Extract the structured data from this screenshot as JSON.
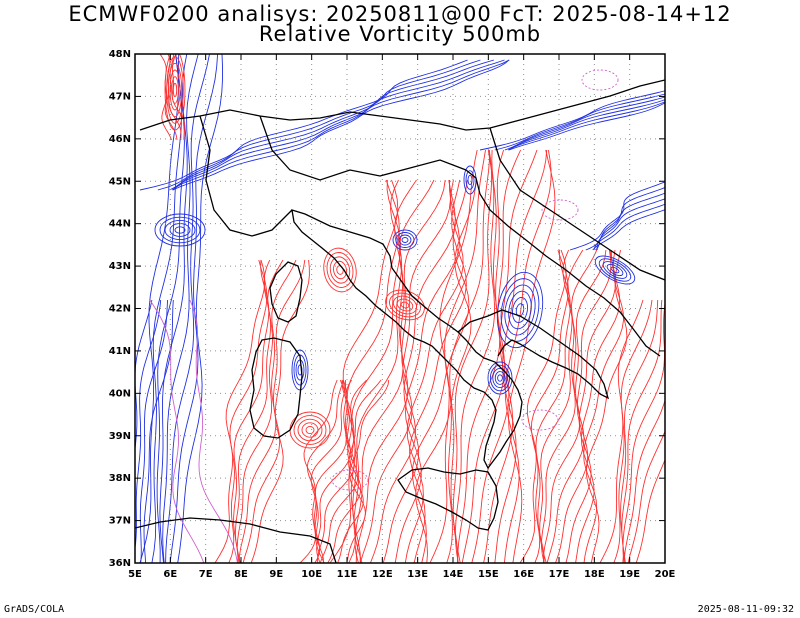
{
  "title": {
    "line1": "ECMWF0200 analisys: 20250811@00 FcT: 2025-08-14+12",
    "line2": "Relative Vorticity 500mb"
  },
  "axes": {
    "lat_labels": [
      "36N",
      "37N",
      "38N",
      "39N",
      "40N",
      "41N",
      "42N",
      "43N",
      "44N",
      "45N",
      "46N",
      "47N",
      "48N"
    ],
    "lon_labels": [
      "5E",
      "6E",
      "7E",
      "8E",
      "9E",
      "10E",
      "11E",
      "12E",
      "13E",
      "14E",
      "15E",
      "16E",
      "17E",
      "18E",
      "19E",
      "20E"
    ],
    "lat_range": [
      36,
      48
    ],
    "lon_range": [
      5,
      20
    ]
  },
  "footer": {
    "left": "GrADS/COLA",
    "right": "2025-08-11-09:32"
  },
  "colors": {
    "positive_vorticity": "#ff3030",
    "negative_vorticity": "#2030e0",
    "zero_contour": "#d060d0",
    "coastline": "#000000",
    "grid": "#909090"
  }
}
